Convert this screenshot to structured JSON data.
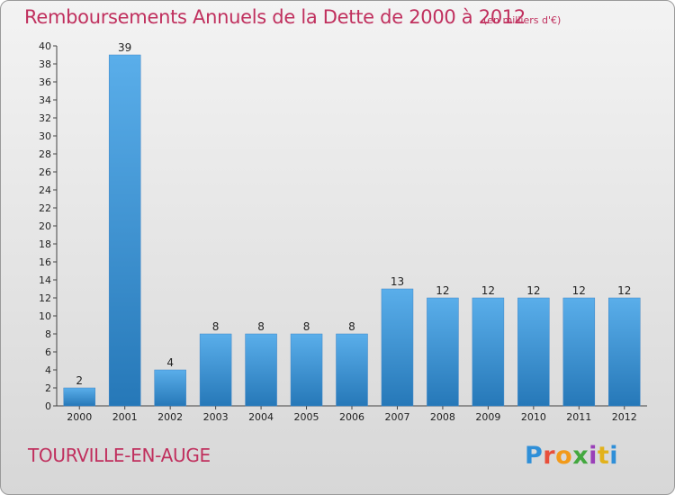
{
  "header": {
    "title": "Remboursements Annuels de la Dette de 2000 à 2012",
    "unit_note": "(en milliers d'€)"
  },
  "footer": {
    "commune": "TOURVILLE-EN-AUGE",
    "logo_text": "Proxiti"
  },
  "colors": {
    "title": "#c0305e",
    "bar_light": "#5aaeea",
    "bar_dark": "#2678b8",
    "background_top": "#f3f3f3",
    "background_bottom": "#d7d7d7"
  },
  "chart_data": {
    "type": "bar",
    "title": "Remboursements Annuels de la Dette de 2000 à 2012",
    "subtitle": "(en milliers d'€)",
    "xlabel": "",
    "ylabel": "",
    "categories": [
      "2000",
      "2001",
      "2002",
      "2003",
      "2004",
      "2005",
      "2006",
      "2007",
      "2008",
      "2009",
      "2010",
      "2011",
      "2012"
    ],
    "values": [
      2,
      39,
      4,
      8,
      8,
      8,
      8,
      13,
      12,
      12,
      12,
      12,
      12
    ],
    "data_labels": [
      "2",
      "39",
      "4",
      "8",
      "8",
      "8",
      "8",
      "13",
      "12",
      "12",
      "12",
      "12",
      "12"
    ],
    "ylim": [
      0,
      40
    ],
    "yticks": [
      0,
      2,
      4,
      6,
      8,
      10,
      12,
      14,
      16,
      18,
      20,
      22,
      24,
      26,
      28,
      30,
      32,
      34,
      36,
      38,
      40
    ],
    "grid": false,
    "legend": "none"
  }
}
